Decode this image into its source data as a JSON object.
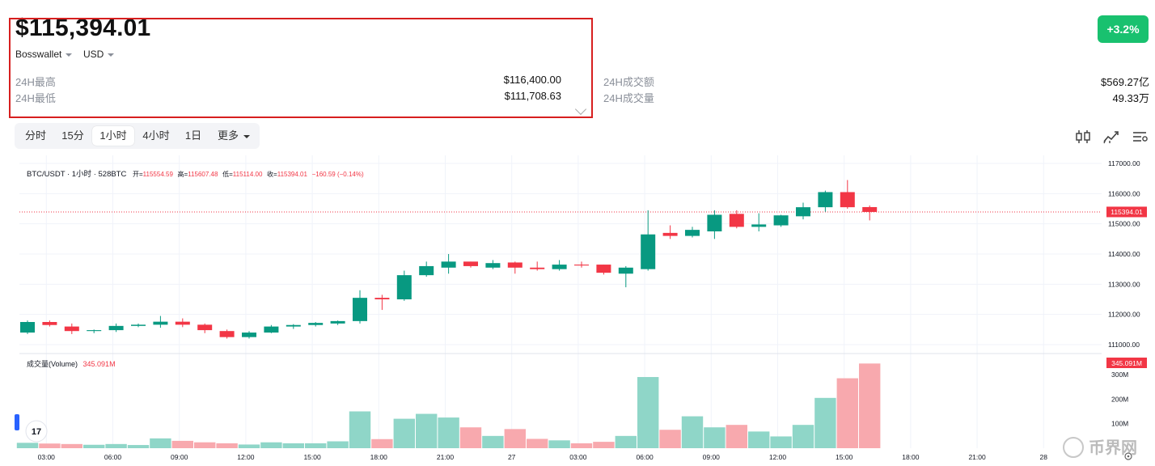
{
  "header": {
    "price": "$115,394.01",
    "exchange": "Bosswallet",
    "currency": "USD",
    "change_badge": "+3.2%"
  },
  "stats": [
    {
      "label": "24H最高",
      "value": "$116,400.00"
    },
    {
      "label": "24H最低",
      "value": "$111,708.63"
    },
    {
      "label": "24H成交额",
      "value": "$569.27亿"
    },
    {
      "label": "24H成交量",
      "value": "49.33万"
    }
  ],
  "timeframes": {
    "items": [
      "分时",
      "15分",
      "1小时",
      "4小时",
      "1日"
    ],
    "active": "1小时",
    "more": "更多"
  },
  "tools": [
    "candles-icon",
    "indicators-icon",
    "settings-list-icon"
  ],
  "legend": {
    "symbol": "BTC/USDT · 1小时 · 528BTC",
    "open_label": "开=",
    "open": "115554.59",
    "high_label": "高=",
    "high": "115607.48",
    "low_label": "低=",
    "low": "115114.00",
    "close_label": "收=",
    "close": "115394.01",
    "change": "−160.59 (−0.14%)",
    "volume_label": "成交量(Volume)",
    "volume_value": "345.091M"
  },
  "colors": {
    "up": "#089981",
    "down": "#f23645",
    "vol_up": "#8fd6c8",
    "vol_down": "#f8a9ae",
    "badge": "#19c16f"
  },
  "watermark": "币界网",
  "tv_logo": "17",
  "chart_data": {
    "type": "candlestick",
    "price_axis": {
      "ticks": [
        "117000.00",
        "116000.00",
        "115000.00",
        "114000.00",
        "113000.00",
        "112000.00",
        "111000.00"
      ],
      "range": [
        110750,
        117100
      ]
    },
    "volume_axis": {
      "ticks": [
        "300M",
        "200M",
        "100M"
      ],
      "range": [
        0,
        345
      ]
    },
    "current_price_label": "115394.01",
    "current_volume_label": "345.091M",
    "x_labels": [
      {
        "label": "03:00",
        "index": 1
      },
      {
        "label": "06:00",
        "index": 4
      },
      {
        "label": "09:00",
        "index": 7
      },
      {
        "label": "12:00",
        "index": 10
      },
      {
        "label": "15:00",
        "index": 13
      },
      {
        "label": "18:00",
        "index": 16
      },
      {
        "label": "21:00",
        "index": 19
      },
      {
        "label": "27",
        "index": 22
      },
      {
        "label": "03:00",
        "index": 25
      },
      {
        "label": "06:00",
        "index": 28
      },
      {
        "label": "09:00",
        "index": 31
      },
      {
        "label": "12:00",
        "index": 34
      },
      {
        "label": "15:00",
        "index": 37
      },
      {
        "label": "18:00",
        "index": 40
      },
      {
        "label": "21:00",
        "index": 43
      },
      {
        "label": "28",
        "index": 46
      }
    ],
    "candles": [
      {
        "o": 111400,
        "h": 111800,
        "l": 111350,
        "c": 111750,
        "v": 22
      },
      {
        "o": 111750,
        "h": 111800,
        "l": 111600,
        "c": 111650,
        "v": 19
      },
      {
        "o": 111600,
        "h": 111700,
        "l": 111350,
        "c": 111450,
        "v": 17
      },
      {
        "o": 111450,
        "h": 111500,
        "l": 111380,
        "c": 111480,
        "v": 14
      },
      {
        "o": 111480,
        "h": 111700,
        "l": 111420,
        "c": 111620,
        "v": 17
      },
      {
        "o": 111620,
        "h": 111700,
        "l": 111580,
        "c": 111660,
        "v": 13
      },
      {
        "o": 111660,
        "h": 111950,
        "l": 111560,
        "c": 111760,
        "v": 40
      },
      {
        "o": 111760,
        "h": 111870,
        "l": 111580,
        "c": 111660,
        "v": 30
      },
      {
        "o": 111660,
        "h": 111700,
        "l": 111380,
        "c": 111480,
        "v": 24
      },
      {
        "o": 111450,
        "h": 111500,
        "l": 111200,
        "c": 111250,
        "v": 20
      },
      {
        "o": 111250,
        "h": 111450,
        "l": 111200,
        "c": 111400,
        "v": 15
      },
      {
        "o": 111400,
        "h": 111650,
        "l": 111380,
        "c": 111600,
        "v": 24
      },
      {
        "o": 111600,
        "h": 111680,
        "l": 111520,
        "c": 111650,
        "v": 20
      },
      {
        "o": 111650,
        "h": 111750,
        "l": 111600,
        "c": 111720,
        "v": 20
      },
      {
        "o": 111700,
        "h": 111800,
        "l": 111650,
        "c": 111780,
        "v": 28
      },
      {
        "o": 111780,
        "h": 112800,
        "l": 111700,
        "c": 112550,
        "v": 150
      },
      {
        "o": 112550,
        "h": 112650,
        "l": 112150,
        "c": 112500,
        "v": 37
      },
      {
        "o": 112500,
        "h": 113450,
        "l": 112450,
        "c": 113300,
        "v": 120
      },
      {
        "o": 113300,
        "h": 113750,
        "l": 113250,
        "c": 113600,
        "v": 140
      },
      {
        "o": 113550,
        "h": 114000,
        "l": 113350,
        "c": 113750,
        "v": 125
      },
      {
        "o": 113750,
        "h": 113750,
        "l": 113550,
        "c": 113600,
        "v": 85
      },
      {
        "o": 113550,
        "h": 113800,
        "l": 113500,
        "c": 113700,
        "v": 50
      },
      {
        "o": 113720,
        "h": 113750,
        "l": 113350,
        "c": 113550,
        "v": 78
      },
      {
        "o": 113550,
        "h": 113750,
        "l": 113450,
        "c": 113500,
        "v": 38
      },
      {
        "o": 113500,
        "h": 113800,
        "l": 113450,
        "c": 113650,
        "v": 32
      },
      {
        "o": 113650,
        "h": 113750,
        "l": 113550,
        "c": 113620,
        "v": 20
      },
      {
        "o": 113650,
        "h": 113650,
        "l": 113320,
        "c": 113380,
        "v": 26
      },
      {
        "o": 113350,
        "h": 113600,
        "l": 112900,
        "c": 113550,
        "v": 50
      },
      {
        "o": 113500,
        "h": 115450,
        "l": 113450,
        "c": 114650,
        "v": 290
      },
      {
        "o": 114700,
        "h": 114950,
        "l": 114500,
        "c": 114600,
        "v": 75
      },
      {
        "o": 114600,
        "h": 114900,
        "l": 114550,
        "c": 114800,
        "v": 130
      },
      {
        "o": 114750,
        "h": 115450,
        "l": 114500,
        "c": 115300,
        "v": 85
      },
      {
        "o": 115330,
        "h": 115450,
        "l": 114850,
        "c": 114900,
        "v": 95
      },
      {
        "o": 114900,
        "h": 115350,
        "l": 114750,
        "c": 114980,
        "v": 68
      },
      {
        "o": 114950,
        "h": 115300,
        "l": 114900,
        "c": 115280,
        "v": 48
      },
      {
        "o": 115250,
        "h": 115700,
        "l": 115150,
        "c": 115550,
        "v": 95
      },
      {
        "o": 115550,
        "h": 116100,
        "l": 115400,
        "c": 116050,
        "v": 205
      },
      {
        "o": 116050,
        "h": 116450,
        "l": 115500,
        "c": 115550,
        "v": 285
      },
      {
        "o": 115554.59,
        "h": 115607.48,
        "l": 115114,
        "c": 115394.01,
        "v": 345.091
      }
    ]
  }
}
